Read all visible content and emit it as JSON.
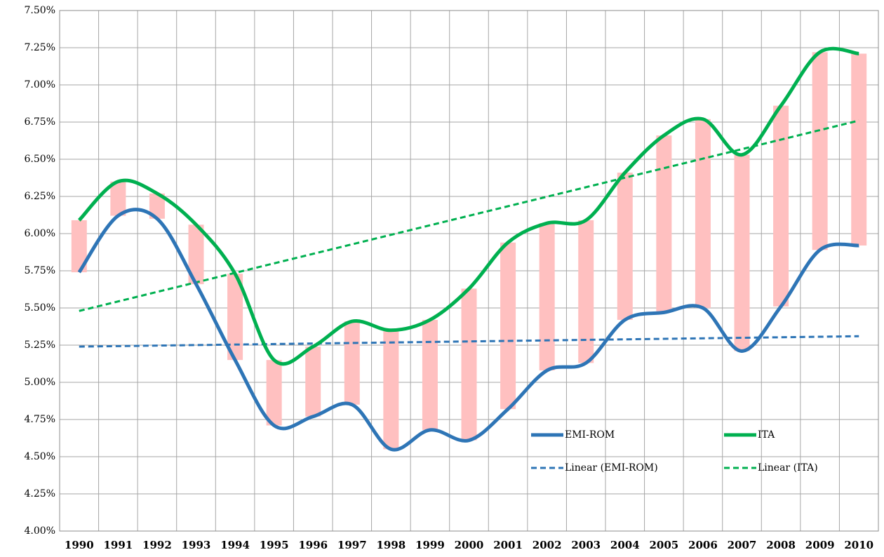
{
  "chart_data": {
    "type": "line",
    "categories": [
      "1990",
      "1991",
      "1992",
      "1993",
      "1994",
      "1995",
      "1996",
      "1997",
      "1998",
      "1999",
      "2000",
      "2001",
      "2002",
      "2003",
      "2004",
      "2005",
      "2006",
      "2007",
      "2008",
      "2009",
      "2010"
    ],
    "series": [
      {
        "name": "EMI-ROM",
        "color": "#2e75b6",
        "values": [
          5.74,
          6.12,
          6.1,
          5.66,
          5.15,
          4.71,
          4.77,
          4.85,
          4.55,
          4.68,
          4.61,
          4.82,
          5.08,
          5.13,
          5.42,
          5.47,
          5.5,
          5.21,
          5.51,
          5.89,
          5.92
        ]
      },
      {
        "name": "ITA",
        "color": "#00b050",
        "values": [
          6.09,
          6.35,
          6.27,
          6.06,
          5.73,
          5.15,
          5.24,
          5.41,
          5.35,
          5.42,
          5.63,
          5.94,
          6.07,
          6.09,
          6.41,
          6.66,
          6.77,
          6.53,
          6.86,
          7.22,
          7.21
        ]
      }
    ],
    "trendlines": [
      {
        "name": "Linear (EMI-ROM)",
        "color": "#2e75b6",
        "from": 5.24,
        "to": 5.31
      },
      {
        "name": "Linear (ITA)",
        "color": "#00b050",
        "from": 5.48,
        "to": 6.76
      }
    ],
    "bar_color": "#ffc0c0",
    "ylim": [
      4.0,
      7.5
    ],
    "yticks": [
      {
        "value": 4.0,
        "label": "4.00%"
      },
      {
        "value": 4.25,
        "label": "4.25%"
      },
      {
        "value": 4.5,
        "label": "4.50%"
      },
      {
        "value": 4.75,
        "label": "4.75%"
      },
      {
        "value": 5.0,
        "label": "5.00%"
      },
      {
        "value": 5.25,
        "label": "5.25%"
      },
      {
        "value": 5.5,
        "label": "5.50%"
      },
      {
        "value": 5.75,
        "label": "5.75%"
      },
      {
        "value": 6.0,
        "label": "6.00%"
      },
      {
        "value": 6.25,
        "label": "6.25%"
      },
      {
        "value": 6.5,
        "label": "6.50%"
      },
      {
        "value": 6.75,
        "label": "6.75%"
      },
      {
        "value": 7.0,
        "label": "7.00%"
      },
      {
        "value": 7.25,
        "label": "7.25%"
      },
      {
        "value": 7.5,
        "label": "7.50%"
      }
    ],
    "grid": true
  }
}
